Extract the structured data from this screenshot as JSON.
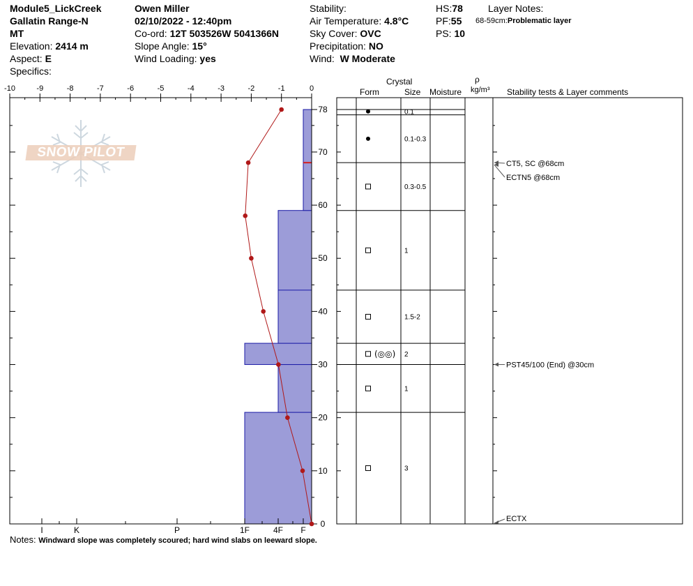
{
  "header": {
    "site": "Module5_LickCreek",
    "range": "Gallatin Range-N",
    "state": "MT",
    "elevation_label": "Elevation:",
    "elevation_value": "2414 m",
    "aspect_label": "Aspect:",
    "aspect_value": "E",
    "specifics_label": "Specifics:",
    "observer": "Owen Miller",
    "datetime": "02/10/2022 - 12:40pm",
    "coord_label": "Co-ord:",
    "coord_value": "12T 503526W 5041366N",
    "slope_label": "Slope Angle:",
    "slope_value": "15°",
    "wind_loading_label": "Wind Loading:",
    "wind_loading_value": "yes",
    "stability_label": "Stability:",
    "air_temp_label": "Air Temperature:",
    "air_temp_value": "4.8°C",
    "sky_label": "Sky Cover:",
    "sky_value": "OVC",
    "precip_label": "Precipitation:",
    "precip_value": "NO",
    "wind_label": "Wind:",
    "wind_value": "W Moderate",
    "hs_label": "HS:",
    "hs_value": "78",
    "pf_label": "PF:",
    "pf_value": "55",
    "ps_label": "PS:",
    "ps_value": "10",
    "layer_notes_label": "Layer Notes:",
    "layer_note_range": "68-59cm:",
    "layer_note_text": "Problematic layer"
  },
  "table_headers": {
    "crystal": "Crystal",
    "form": "Form",
    "size": "Size",
    "moisture": "Moisture",
    "rho": "ρ",
    "density_unit": "kg/m³",
    "comments": "Stability tests & Layer comments"
  },
  "notes": {
    "label": "Notes:",
    "text": "Windward slope was completely scoured; hard wind slabs on leeward slope."
  },
  "watermark": "SNOW PILOT",
  "colors": {
    "hardness_fill": "#9c9cd8",
    "hardness_edge": "#1a1aa6",
    "temp_line": "#b01818",
    "problem_line": "#d42020"
  },
  "chart_data": {
    "type": "snow_profile",
    "temp_axis": {
      "ticks": [
        "-10",
        "-9",
        "-8",
        "-7",
        "-6",
        "-5",
        "-4",
        "-3",
        "-2",
        "-1",
        "0"
      ],
      "range": [
        -10,
        0
      ]
    },
    "hardness_axis": {
      "ticks": [
        "I",
        "K",
        "P",
        "1F",
        "4F",
        "F"
      ]
    },
    "depth_axis": {
      "ticks": [
        "0",
        "10",
        "20",
        "30",
        "40",
        "50",
        "60",
        "70",
        "78"
      ],
      "range": [
        0,
        78
      ]
    },
    "hardness_layers": [
      {
        "bottom": 0,
        "top": 21,
        "hardness": "1F"
      },
      {
        "bottom": 21,
        "top": 30,
        "hardness": "4F"
      },
      {
        "bottom": 30,
        "top": 34,
        "hardness": "1F"
      },
      {
        "bottom": 34,
        "top": 59,
        "hardness": "4F"
      },
      {
        "bottom": 59,
        "top": 78,
        "hardness": "F+"
      }
    ],
    "layer_boundaries": [
      0,
      21,
      30,
      34,
      44,
      59,
      68,
      77,
      78
    ],
    "problem_layer_depth": 68,
    "temperature_profile": [
      {
        "depth": 0,
        "temp": 0
      },
      {
        "depth": 10,
        "temp": -0.3
      },
      {
        "depth": 20,
        "temp": -0.8
      },
      {
        "depth": 30,
        "temp": -1.1
      },
      {
        "depth": 40,
        "temp": -1.6
      },
      {
        "depth": 50,
        "temp": -2.0
      },
      {
        "depth": 58,
        "temp": -2.2
      },
      {
        "depth": 68,
        "temp": -2.1
      },
      {
        "depth": 78,
        "temp": -1.0
      }
    ],
    "crystal_layers": [
      {
        "bottom": 77,
        "top": 78,
        "form": "dot",
        "size": "0.1"
      },
      {
        "bottom": 68,
        "top": 77,
        "form": "dot",
        "size": "0.1-0.3"
      },
      {
        "bottom": 59,
        "top": 68,
        "form": "square",
        "size": "0.3-0.5"
      },
      {
        "bottom": 44,
        "top": 59,
        "form": "square",
        "size": "1"
      },
      {
        "bottom": 34,
        "top": 44,
        "form": "square",
        "size": "1.5-2"
      },
      {
        "bottom": 30,
        "top": 34,
        "form": "square+depth-hoar",
        "size": "2"
      },
      {
        "bottom": 21,
        "top": 30,
        "form": "square",
        "size": "1"
      },
      {
        "bottom": 0,
        "top": 21,
        "form": "square",
        "size": "3"
      }
    ],
    "stability_comments": [
      {
        "depth": 68,
        "text": "CT5, SC @68cm"
      },
      {
        "depth": 68,
        "text": "ECTN5 @68cm"
      },
      {
        "depth": 30,
        "text": "PST45/100 (End) @30cm"
      },
      {
        "depth": 0,
        "text": "ECTX"
      }
    ]
  }
}
